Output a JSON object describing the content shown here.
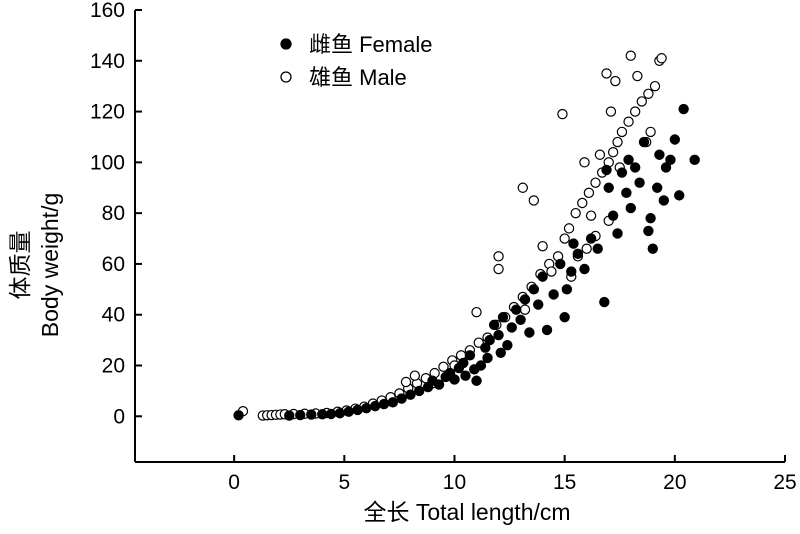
{
  "chart_data": {
    "type": "scatter",
    "title": "",
    "xlabel": "全长 Total length/cm",
    "ylabel_line1": "体质量",
    "ylabel_line2": "Body weight/g",
    "xlim": [
      -4.5,
      25
    ],
    "ylim": [
      -18,
      160
    ],
    "x_ticks": [
      0,
      5,
      10,
      15,
      20,
      25
    ],
    "y_ticks": [
      0,
      20,
      40,
      60,
      80,
      100,
      120,
      140,
      160
    ],
    "legend_position": "top-left",
    "grid": false,
    "series": [
      {
        "name": "雌鱼 Female",
        "marker": "filled-circle",
        "color": "#000000",
        "points": [
          [
            0.2,
            0.4
          ],
          [
            2.5,
            0.3
          ],
          [
            3.0,
            0.5
          ],
          [
            3.5,
            0.7
          ],
          [
            4.0,
            0.8
          ],
          [
            4.4,
            0.9
          ],
          [
            4.8,
            1.2
          ],
          [
            5.2,
            1.8
          ],
          [
            5.6,
            2.5
          ],
          [
            6.0,
            3.2
          ],
          [
            6.4,
            4.0
          ],
          [
            6.8,
            4.8
          ],
          [
            7.2,
            5.5
          ],
          [
            7.6,
            7.0
          ],
          [
            8.0,
            8.5
          ],
          [
            8.4,
            10.0
          ],
          [
            8.8,
            11.5
          ],
          [
            9.0,
            14.0
          ],
          [
            9.3,
            12.5
          ],
          [
            9.6,
            15.5
          ],
          [
            9.8,
            17.0
          ],
          [
            10.0,
            14.5
          ],
          [
            10.2,
            19.0
          ],
          [
            10.4,
            21.0
          ],
          [
            10.5,
            16.0
          ],
          [
            10.7,
            24.0
          ],
          [
            10.9,
            18.5
          ],
          [
            11.0,
            14.0
          ],
          [
            11.2,
            20.0
          ],
          [
            11.4,
            27.0
          ],
          [
            11.6,
            30.0
          ],
          [
            11.8,
            36.0
          ],
          [
            12.0,
            32.0
          ],
          [
            12.2,
            39.0
          ],
          [
            12.4,
            28.0
          ],
          [
            12.6,
            35.0
          ],
          [
            12.8,
            42.0
          ],
          [
            13.0,
            38.0
          ],
          [
            13.2,
            46.0
          ],
          [
            13.4,
            33.0
          ],
          [
            13.6,
            50.0
          ],
          [
            13.8,
            44.0
          ],
          [
            14.0,
            55.0
          ],
          [
            14.2,
            34.0
          ],
          [
            14.5,
            48.0
          ],
          [
            14.8,
            60.0
          ],
          [
            15.0,
            39.0
          ],
          [
            15.1,
            50.0
          ],
          [
            15.3,
            57.0
          ],
          [
            15.6,
            64.0
          ],
          [
            15.9,
            58.0
          ],
          [
            16.2,
            70.0
          ],
          [
            16.5,
            66.0
          ],
          [
            16.8,
            45.0
          ],
          [
            17.0,
            90.0
          ],
          [
            17.2,
            79.0
          ],
          [
            17.4,
            72.0
          ],
          [
            17.6,
            96.0
          ],
          [
            17.8,
            88.0
          ],
          [
            18.0,
            82.0
          ],
          [
            18.2,
            98.0
          ],
          [
            18.4,
            92.0
          ],
          [
            18.6,
            108.0
          ],
          [
            18.9,
            78.0
          ],
          [
            19.0,
            66.0
          ],
          [
            19.2,
            90.0
          ],
          [
            19.3,
            103.0
          ],
          [
            19.5,
            85.0
          ],
          [
            19.6,
            98.0
          ],
          [
            19.8,
            101.0
          ],
          [
            20.0,
            109.0
          ],
          [
            20.2,
            87.0
          ],
          [
            20.4,
            121.0
          ],
          [
            20.9,
            101.0
          ],
          [
            17.9,
            101.0
          ],
          [
            18.8,
            73.0
          ],
          [
            16.9,
            97.0
          ],
          [
            15.4,
            68.0
          ],
          [
            12.1,
            25.0
          ],
          [
            11.5,
            23.0
          ]
        ]
      },
      {
        "name": "雄鱼 Male",
        "marker": "open-circle",
        "color": "#000000",
        "points": [
          [
            0.4,
            2.0
          ],
          [
            1.3,
            0.3
          ],
          [
            1.5,
            0.4
          ],
          [
            1.7,
            0.5
          ],
          [
            1.9,
            0.6
          ],
          [
            2.1,
            0.7
          ],
          [
            2.3,
            0.8
          ],
          [
            2.7,
            0.9
          ],
          [
            3.2,
            1.0
          ],
          [
            3.7,
            1.1
          ],
          [
            4.2,
            1.3
          ],
          [
            4.7,
            1.8
          ],
          [
            5.1,
            2.3
          ],
          [
            5.5,
            3.0
          ],
          [
            5.9,
            3.8
          ],
          [
            6.3,
            5.0
          ],
          [
            6.7,
            6.2
          ],
          [
            7.1,
            7.5
          ],
          [
            7.5,
            9.0
          ],
          [
            7.9,
            11.0
          ],
          [
            8.3,
            13.0
          ],
          [
            8.7,
            15.0
          ],
          [
            9.1,
            17.0
          ],
          [
            9.5,
            19.5
          ],
          [
            9.9,
            22.0
          ],
          [
            10.3,
            24.0
          ],
          [
            10.7,
            26.0
          ],
          [
            11.1,
            29.0
          ],
          [
            11.5,
            31.0
          ],
          [
            11.9,
            36.0
          ],
          [
            12.3,
            39.0
          ],
          [
            12.7,
            43.0
          ],
          [
            13.1,
            47.0
          ],
          [
            13.5,
            51.0
          ],
          [
            13.9,
            56.0
          ],
          [
            14.3,
            60.0
          ],
          [
            14.7,
            63.0
          ],
          [
            15.0,
            70.0
          ],
          [
            15.2,
            74.0
          ],
          [
            15.5,
            80.0
          ],
          [
            15.8,
            84.0
          ],
          [
            16.1,
            88.0
          ],
          [
            16.4,
            92.0
          ],
          [
            16.7,
            96.0
          ],
          [
            17.0,
            100.0
          ],
          [
            17.2,
            104.0
          ],
          [
            17.4,
            108.0
          ],
          [
            17.6,
            112.0
          ],
          [
            17.9,
            116.0
          ],
          [
            18.2,
            120.0
          ],
          [
            18.5,
            124.0
          ],
          [
            18.8,
            127.0
          ],
          [
            19.1,
            130.0
          ],
          [
            19.3,
            140.0
          ],
          [
            19.4,
            141.0
          ],
          [
            18.0,
            142.0
          ],
          [
            16.9,
            135.0
          ],
          [
            18.3,
            134.0
          ],
          [
            17.3,
            132.0
          ],
          [
            14.9,
            119.0
          ],
          [
            13.1,
            90.0
          ],
          [
            13.6,
            85.0
          ],
          [
            12.0,
            63.0
          ],
          [
            12.0,
            58.0
          ],
          [
            14.0,
            67.0
          ],
          [
            16.0,
            66.0
          ],
          [
            16.2,
            79.0
          ],
          [
            17.0,
            77.0
          ],
          [
            15.3,
            55.0
          ],
          [
            14.4,
            57.0
          ],
          [
            13.2,
            42.0
          ],
          [
            11.0,
            41.0
          ],
          [
            10.0,
            20.0
          ],
          [
            9.0,
            13.0
          ],
          [
            8.2,
            16.0
          ],
          [
            7.8,
            13.5
          ],
          [
            17.1,
            120.0
          ],
          [
            17.5,
            98.0
          ],
          [
            16.6,
            103.0
          ],
          [
            15.9,
            100.0
          ],
          [
            18.7,
            108.0
          ],
          [
            18.9,
            112.0
          ],
          [
            15.6,
            63.0
          ],
          [
            16.4,
            71.0
          ]
        ]
      }
    ]
  }
}
